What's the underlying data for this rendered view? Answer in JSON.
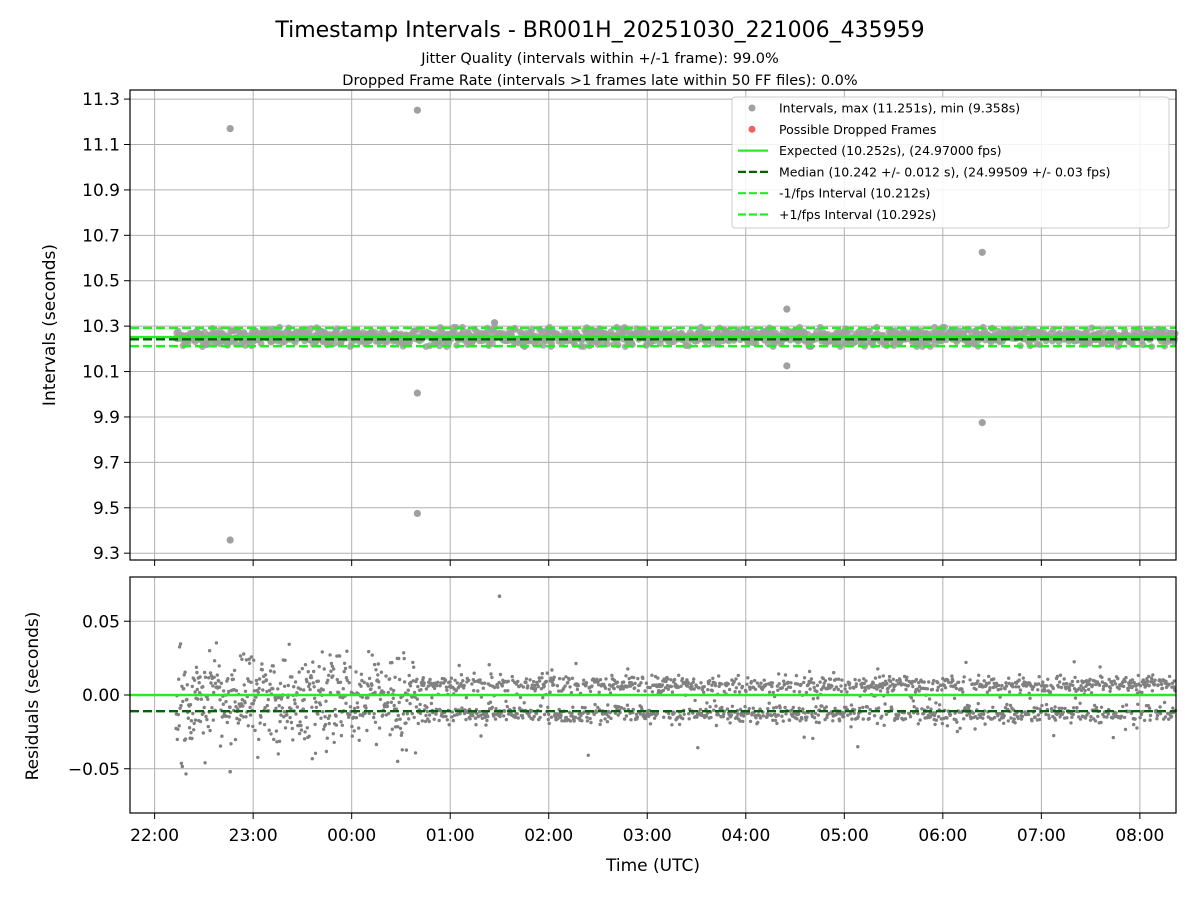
{
  "chart_data": [
    {
      "type": "scatter",
      "title": "Timestamp Intervals - BR001H_20251030_221006_435959",
      "subtitle_lines": [
        "Jitter Quality (intervals within +/-1 frame): 99.0%",
        "Dropped Frame Rate (intervals >1 frames late within 50 FF files): 0.0%"
      ],
      "xlabel": "",
      "ylabel": "Intervals (seconds)",
      "ylim": [
        9.27,
        11.34
      ],
      "yticks": [
        "9.3",
        "9.5",
        "9.7",
        "9.9",
        "10.1",
        "10.3",
        "10.5",
        "10.7",
        "10.9",
        "11.1",
        "11.3"
      ],
      "xticks_minutes": [
        0,
        60,
        120,
        180,
        240,
        300,
        360,
        420,
        480,
        540,
        600
      ],
      "xlim_minutes": [
        -15,
        622
      ],
      "grid": true,
      "legend_position": "top-right",
      "legend": [
        {
          "label": "Intervals, max (11.251s), min (9.358s)",
          "kind": "marker",
          "color": "#a0a0a0"
        },
        {
          "label": "Possible Dropped Frames",
          "kind": "marker",
          "color": "#f06060"
        },
        {
          "label": "Expected (10.252s), (24.97000 fps)",
          "kind": "solid",
          "color": "#22ee22"
        },
        {
          "label": "Median (10.242 +/- 0.012 s), (24.99509 +/- 0.03 fps)",
          "kind": "dashed",
          "color": "#006400"
        },
        {
          "label": "-1/fps Interval (10.212s)",
          "kind": "dashed",
          "color": "#22ee22"
        },
        {
          "label": "+1/fps Interval (10.292s)",
          "kind": "dashed",
          "color": "#22ee22"
        }
      ],
      "reference_lines": [
        {
          "name": "Expected",
          "y": 10.252,
          "style": "solid",
          "color": "#22ee22"
        },
        {
          "name": "Median",
          "y": 10.242,
          "style": "dashed",
          "color": "#006400"
        },
        {
          "name": "-1/fps Interval",
          "y": 10.212,
          "style": "dashed",
          "color": "#22ee22"
        },
        {
          "name": "+1/fps Interval",
          "y": 10.292,
          "style": "dashed",
          "color": "#22ee22"
        }
      ],
      "main_band": {
        "x_start_minutes": 13,
        "x_end_minutes": 622,
        "y_low": 10.21,
        "y_high": 10.295,
        "approx_point_count": 3600
      },
      "outliers": [
        {
          "x_minutes": 46,
          "y": 11.17
        },
        {
          "x_minutes": 46,
          "y": 9.358
        },
        {
          "x_minutes": 160,
          "y": 11.251
        },
        {
          "x_minutes": 160,
          "y": 10.005
        },
        {
          "x_minutes": 160,
          "y": 9.475
        },
        {
          "x_minutes": 207,
          "y": 10.315
        },
        {
          "x_minutes": 385,
          "y": 10.375
        },
        {
          "x_minutes": 385,
          "y": 10.125
        },
        {
          "x_minutes": 504,
          "y": 10.625
        },
        {
          "x_minutes": 504,
          "y": 9.875
        }
      ],
      "point_color": "#a0a0a0"
    },
    {
      "type": "scatter",
      "title": "",
      "xlabel": "Time (UTC)",
      "ylabel": "Residuals (seconds)",
      "ylim": [
        -0.08,
        0.08
      ],
      "yticks": [
        "−0.05",
        "0.00",
        "0.05"
      ],
      "ytick_values": [
        -0.05,
        0.0,
        0.05
      ],
      "xtick_labels": [
        "22:00",
        "23:00",
        "00:00",
        "01:00",
        "02:00",
        "03:00",
        "04:00",
        "05:00",
        "06:00",
        "07:00",
        "08:00"
      ],
      "xticks_minutes": [
        0,
        60,
        120,
        180,
        240,
        300,
        360,
        420,
        480,
        540,
        600
      ],
      "xlim_minutes": [
        -15,
        622
      ],
      "grid": true,
      "reference_lines": [
        {
          "name": "Expected",
          "y": 0.0,
          "style": "solid",
          "color": "#22ee22"
        },
        {
          "name": "Median",
          "y": -0.011,
          "style": "dashed",
          "color": "#006400"
        }
      ],
      "clusters": [
        {
          "name": "upper",
          "y_center": 0.007,
          "spread_early": 0.012,
          "spread_late": 0.003
        },
        {
          "name": "lower",
          "y_center": -0.013,
          "spread_early": 0.012,
          "spread_late": 0.003
        }
      ],
      "scattered_extremes": [
        {
          "x_minutes": 210,
          "y": 0.067
        },
        {
          "x_minutes": 46,
          "y": -0.052
        },
        {
          "x_minutes": 148,
          "y": -0.045
        }
      ],
      "x_start_minutes": 13,
      "x_end_minutes": 622,
      "approx_point_count": 3600,
      "point_color": "#808080"
    }
  ]
}
